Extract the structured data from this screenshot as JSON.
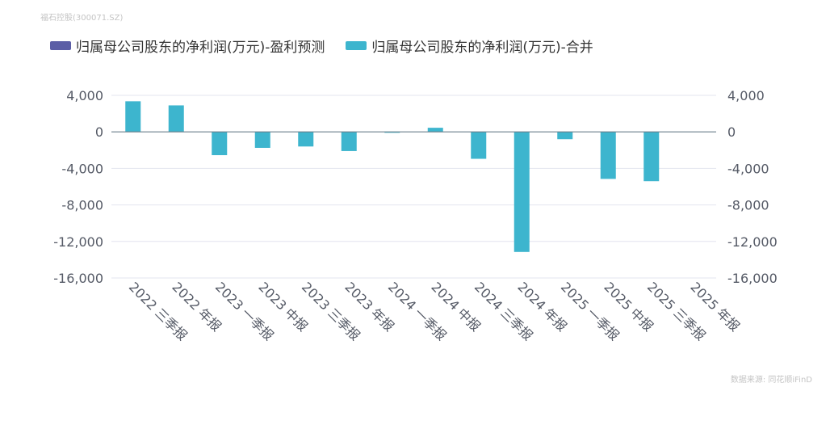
{
  "watermark": "福石控股(300071.SZ)",
  "source": "数据来源: 同花顺iFinD",
  "colors": {
    "forecast": "#5b5ea6",
    "merged": "#3db5ce",
    "grid": "#e3e4ef",
    "zero": "#6a7f8a"
  },
  "legend": [
    {
      "label": "归属母公司股东的净利润(万元)-盈利预测",
      "color": "#5b5ea6",
      "icon": "bar-swatch"
    },
    {
      "label": "归属母公司股东的净利润(万元)-合并",
      "color": "#3db5ce",
      "icon": "bar-swatch"
    }
  ],
  "chart_data": {
    "type": "bar",
    "title": "",
    "xlabel": "",
    "ylabel": "",
    "ylim": [
      -16000,
      4000
    ],
    "yticks": [
      4000,
      0,
      -4000,
      -8000,
      -12000,
      -16000
    ],
    "ytick_labels": [
      "4,000",
      "0",
      "-4,000",
      "-8,000",
      "-12,000",
      "-16,000"
    ],
    "categories": [
      "2022 三季报",
      "2022 年报",
      "2023 一季报",
      "2023 中报",
      "2023 三季报",
      "2023 年报",
      "2024 一季报",
      "2024 中报",
      "2024 三季报",
      "2024 年报",
      "2025 一季报",
      "2025 中报",
      "2025 三季报",
      "2025 年报"
    ],
    "series": [
      {
        "name": "归属母公司股东的净利润(万元)-盈利预测",
        "values": [
          null,
          null,
          null,
          null,
          null,
          null,
          null,
          null,
          null,
          null,
          null,
          null,
          null,
          null
        ]
      },
      {
        "name": "归属母公司股东的净利润(万元)-合并",
        "values": [
          3350,
          2900,
          -2550,
          -1750,
          -1600,
          -2100,
          -100,
          450,
          -2950,
          -13150,
          -800,
          -5150,
          -5400,
          null
        ]
      }
    ]
  }
}
